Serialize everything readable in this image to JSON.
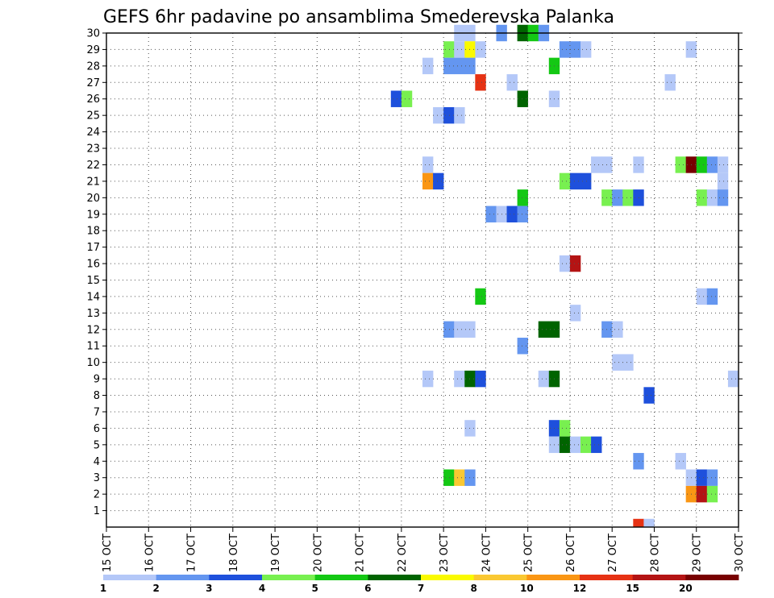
{
  "chart_data": {
    "type": "heatmap",
    "title": "GEFS 6hr padavine po ansamblima Smederevska Palanka",
    "xlabel": "",
    "ylabel": "",
    "x_tick_labels": [
      "15 OCT",
      "16 OCT",
      "17 OCT",
      "18 OCT",
      "19 OCT",
      "20 OCT",
      "21 OCT",
      "22 OCT",
      "23 OCT",
      "24 OCT",
      "25 OCT",
      "26 OCT",
      "27 OCT",
      "28 OCT",
      "29 OCT",
      "30 OCT"
    ],
    "y_tick_labels": [
      "1",
      "2",
      "3",
      "4",
      "5",
      "6",
      "7",
      "8",
      "9",
      "10",
      "11",
      "12",
      "13",
      "14",
      "15",
      "16",
      "17",
      "18",
      "19",
      "20",
      "21",
      "22",
      "23",
      "24",
      "25",
      "26",
      "27",
      "28",
      "29",
      "30"
    ],
    "xlim": [
      "15 OCT",
      "30 OCT"
    ],
    "ylim": [
      0,
      30
    ],
    "step_days": 0.25,
    "grid": true,
    "legend": {
      "placement": "bottom",
      "labels": [
        "1",
        "2",
        "3",
        "4",
        "5",
        "6",
        "7",
        "8",
        "10",
        "12",
        "15",
        "20"
      ],
      "colors": [
        "#b4c8f8",
        "#6496f0",
        "#1e50dc",
        "#78f050",
        "#14c814",
        "#006400",
        "#fafa00",
        "#fac832",
        "#fa9614",
        "#e63214",
        "#b41414",
        "#780000"
      ]
    },
    "cells": [
      {
        "date": "23 OCT",
        "hour": 6,
        "member": 30,
        "cls": 0
      },
      {
        "date": "23 OCT",
        "hour": 12,
        "member": 30,
        "cls": 0
      },
      {
        "date": "24 OCT",
        "hour": 6,
        "member": 30,
        "cls": 1
      },
      {
        "date": "24 OCT",
        "hour": 18,
        "member": 30,
        "cls": 5
      },
      {
        "date": "25 OCT",
        "hour": 0,
        "member": 30,
        "cls": 4
      },
      {
        "date": "25 OCT",
        "hour": 6,
        "member": 30,
        "cls": 1
      },
      {
        "date": "23 OCT",
        "hour": 0,
        "member": 29,
        "cls": 3
      },
      {
        "date": "23 OCT",
        "hour": 6,
        "member": 29,
        "cls": 0
      },
      {
        "date": "23 OCT",
        "hour": 12,
        "member": 29,
        "cls": 6
      },
      {
        "date": "23 OCT",
        "hour": 18,
        "member": 29,
        "cls": 0
      },
      {
        "date": "25 OCT",
        "hour": 18,
        "member": 29,
        "cls": 1
      },
      {
        "date": "26 OCT",
        "hour": 0,
        "member": 29,
        "cls": 1
      },
      {
        "date": "26 OCT",
        "hour": 6,
        "member": 29,
        "cls": 0
      },
      {
        "date": "28 OCT",
        "hour": 18,
        "member": 29,
        "cls": 0
      },
      {
        "date": "22 OCT",
        "hour": 12,
        "member": 28,
        "cls": 0
      },
      {
        "date": "23 OCT",
        "hour": 0,
        "member": 28,
        "cls": 1
      },
      {
        "date": "23 OCT",
        "hour": 6,
        "member": 28,
        "cls": 1
      },
      {
        "date": "23 OCT",
        "hour": 12,
        "member": 28,
        "cls": 1
      },
      {
        "date": "25 OCT",
        "hour": 12,
        "member": 28,
        "cls": 4
      },
      {
        "date": "23 OCT",
        "hour": 18,
        "member": 27,
        "cls": 9
      },
      {
        "date": "24 OCT",
        "hour": 12,
        "member": 27,
        "cls": 0
      },
      {
        "date": "28 OCT",
        "hour": 6,
        "member": 27,
        "cls": 0
      },
      {
        "date": "21 OCT",
        "hour": 18,
        "member": 26,
        "cls": 2
      },
      {
        "date": "22 OCT",
        "hour": 0,
        "member": 26,
        "cls": 3
      },
      {
        "date": "24 OCT",
        "hour": 18,
        "member": 26,
        "cls": 5
      },
      {
        "date": "25 OCT",
        "hour": 12,
        "member": 26,
        "cls": 0
      },
      {
        "date": "22 OCT",
        "hour": 18,
        "member": 25,
        "cls": 0
      },
      {
        "date": "23 OCT",
        "hour": 0,
        "member": 25,
        "cls": 2
      },
      {
        "date": "23 OCT",
        "hour": 6,
        "member": 25,
        "cls": 0
      },
      {
        "date": "22 OCT",
        "hour": 12,
        "member": 22,
        "cls": 0
      },
      {
        "date": "26 OCT",
        "hour": 12,
        "member": 22,
        "cls": 0
      },
      {
        "date": "26 OCT",
        "hour": 18,
        "member": 22,
        "cls": 0
      },
      {
        "date": "27 OCT",
        "hour": 12,
        "member": 22,
        "cls": 0
      },
      {
        "date": "28 OCT",
        "hour": 12,
        "member": 22,
        "cls": 3
      },
      {
        "date": "28 OCT",
        "hour": 18,
        "member": 22,
        "cls": 11
      },
      {
        "date": "29 OCT",
        "hour": 0,
        "member": 22,
        "cls": 4
      },
      {
        "date": "29 OCT",
        "hour": 6,
        "member": 22,
        "cls": 1
      },
      {
        "date": "29 OCT",
        "hour": 12,
        "member": 22,
        "cls": 0
      },
      {
        "date": "22 OCT",
        "hour": 12,
        "member": 21,
        "cls": 8
      },
      {
        "date": "22 OCT",
        "hour": 18,
        "member": 21,
        "cls": 2
      },
      {
        "date": "25 OCT",
        "hour": 18,
        "member": 21,
        "cls": 3
      },
      {
        "date": "26 OCT",
        "hour": 0,
        "member": 21,
        "cls": 2
      },
      {
        "date": "26 OCT",
        "hour": 6,
        "member": 21,
        "cls": 2
      },
      {
        "date": "29 OCT",
        "hour": 12,
        "member": 21,
        "cls": 0
      },
      {
        "date": "24 OCT",
        "hour": 18,
        "member": 20,
        "cls": 4
      },
      {
        "date": "26 OCT",
        "hour": 18,
        "member": 20,
        "cls": 3
      },
      {
        "date": "27 OCT",
        "hour": 0,
        "member": 20,
        "cls": 1
      },
      {
        "date": "27 OCT",
        "hour": 6,
        "member": 20,
        "cls": 3
      },
      {
        "date": "27 OCT",
        "hour": 12,
        "member": 20,
        "cls": 2
      },
      {
        "date": "29 OCT",
        "hour": 0,
        "member": 20,
        "cls": 3
      },
      {
        "date": "29 OCT",
        "hour": 6,
        "member": 20,
        "cls": 0
      },
      {
        "date": "29 OCT",
        "hour": 12,
        "member": 20,
        "cls": 1
      },
      {
        "date": "24 OCT",
        "hour": 0,
        "member": 19,
        "cls": 1
      },
      {
        "date": "24 OCT",
        "hour": 6,
        "member": 19,
        "cls": 0
      },
      {
        "date": "24 OCT",
        "hour": 12,
        "member": 19,
        "cls": 2
      },
      {
        "date": "24 OCT",
        "hour": 18,
        "member": 19,
        "cls": 1
      },
      {
        "date": "25 OCT",
        "hour": 18,
        "member": 16,
        "cls": 0
      },
      {
        "date": "26 OCT",
        "hour": 0,
        "member": 16,
        "cls": 10
      },
      {
        "date": "23 OCT",
        "hour": 18,
        "member": 14,
        "cls": 4
      },
      {
        "date": "29 OCT",
        "hour": 0,
        "member": 14,
        "cls": 0
      },
      {
        "date": "29 OCT",
        "hour": 6,
        "member": 14,
        "cls": 1
      },
      {
        "date": "26 OCT",
        "hour": 0,
        "member": 13,
        "cls": 0
      },
      {
        "date": "23 OCT",
        "hour": 0,
        "member": 12,
        "cls": 1
      },
      {
        "date": "23 OCT",
        "hour": 6,
        "member": 12,
        "cls": 0
      },
      {
        "date": "23 OCT",
        "hour": 12,
        "member": 12,
        "cls": 0
      },
      {
        "date": "25 OCT",
        "hour": 6,
        "member": 12,
        "cls": 5
      },
      {
        "date": "25 OCT",
        "hour": 12,
        "member": 12,
        "cls": 5
      },
      {
        "date": "26 OCT",
        "hour": 18,
        "member": 12,
        "cls": 1
      },
      {
        "date": "27 OCT",
        "hour": 0,
        "member": 12,
        "cls": 0
      },
      {
        "date": "24 OCT",
        "hour": 18,
        "member": 11,
        "cls": 1
      },
      {
        "date": "27 OCT",
        "hour": 0,
        "member": 10,
        "cls": 0
      },
      {
        "date": "27 OCT",
        "hour": 6,
        "member": 10,
        "cls": 0
      },
      {
        "date": "22 OCT",
        "hour": 12,
        "member": 9,
        "cls": 0
      },
      {
        "date": "23 OCT",
        "hour": 6,
        "member": 9,
        "cls": 0
      },
      {
        "date": "23 OCT",
        "hour": 12,
        "member": 9,
        "cls": 5
      },
      {
        "date": "23 OCT",
        "hour": 18,
        "member": 9,
        "cls": 2
      },
      {
        "date": "25 OCT",
        "hour": 6,
        "member": 9,
        "cls": 0
      },
      {
        "date": "25 OCT",
        "hour": 12,
        "member": 9,
        "cls": 5
      },
      {
        "date": "29 OCT",
        "hour": 18,
        "member": 9,
        "cls": 0
      },
      {
        "date": "27 OCT",
        "hour": 18,
        "member": 8,
        "cls": 2
      },
      {
        "date": "23 OCT",
        "hour": 12,
        "member": 6,
        "cls": 0
      },
      {
        "date": "25 OCT",
        "hour": 12,
        "member": 6,
        "cls": 2
      },
      {
        "date": "25 OCT",
        "hour": 18,
        "member": 6,
        "cls": 3
      },
      {
        "date": "25 OCT",
        "hour": 12,
        "member": 5,
        "cls": 0
      },
      {
        "date": "25 OCT",
        "hour": 18,
        "member": 5,
        "cls": 5
      },
      {
        "date": "26 OCT",
        "hour": 0,
        "member": 5,
        "cls": 0
      },
      {
        "date": "26 OCT",
        "hour": 6,
        "member": 5,
        "cls": 3
      },
      {
        "date": "26 OCT",
        "hour": 12,
        "member": 5,
        "cls": 2
      },
      {
        "date": "27 OCT",
        "hour": 12,
        "member": 4,
        "cls": 1
      },
      {
        "date": "28 OCT",
        "hour": 12,
        "member": 4,
        "cls": 0
      },
      {
        "date": "23 OCT",
        "hour": 0,
        "member": 3,
        "cls": 4
      },
      {
        "date": "23 OCT",
        "hour": 6,
        "member": 3,
        "cls": 7
      },
      {
        "date": "23 OCT",
        "hour": 12,
        "member": 3,
        "cls": 1
      },
      {
        "date": "28 OCT",
        "hour": 18,
        "member": 3,
        "cls": 0
      },
      {
        "date": "29 OCT",
        "hour": 0,
        "member": 3,
        "cls": 2
      },
      {
        "date": "29 OCT",
        "hour": 6,
        "member": 3,
        "cls": 1
      },
      {
        "date": "28 OCT",
        "hour": 18,
        "member": 2,
        "cls": 8
      },
      {
        "date": "29 OCT",
        "hour": 0,
        "member": 2,
        "cls": 10
      },
      {
        "date": "29 OCT",
        "hour": 6,
        "member": 2,
        "cls": 3
      },
      {
        "date": "27 OCT",
        "hour": 12,
        "member": 0,
        "cls": 9
      },
      {
        "date": "27 OCT",
        "hour": 18,
        "member": 0,
        "cls": 0
      }
    ]
  }
}
